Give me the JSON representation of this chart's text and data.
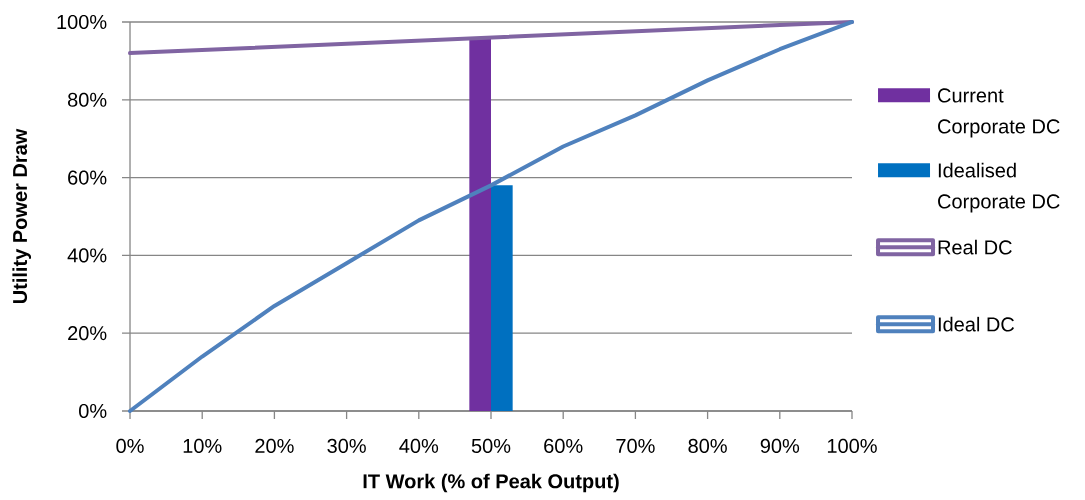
{
  "chart_data": {
    "type": "bar",
    "xlabel": "IT Work (% of Peak Output)",
    "ylabel": "Utility Power Draw",
    "x": [
      50
    ],
    "series": [
      {
        "name": "Current Corporate DC",
        "color": "#7030a0",
        "values": [
          96
        ]
      },
      {
        "name": "Idealised Corporate DC",
        "color": "#0070c0",
        "values": [
          58
        ]
      },
      {
        "name": "Real DC",
        "type": "line",
        "color": "#8064a2",
        "x": [
          0,
          100
        ],
        "values": [
          92,
          100
        ]
      },
      {
        "name": "Ideal DC",
        "type": "line",
        "color": "#4f81bd",
        "x": [
          0,
          10,
          20,
          30,
          40,
          50,
          60,
          70,
          80,
          90,
          100
        ],
        "values": [
          0,
          14,
          27,
          38,
          49,
          58,
          68,
          76,
          85,
          93,
          100
        ]
      }
    ],
    "xlim": [
      0,
      100
    ],
    "ylim": [
      0,
      100
    ],
    "xticks": [
      {
        "value": 0,
        "label": "0%"
      },
      {
        "value": 10,
        "label": "10%"
      },
      {
        "value": 20,
        "label": "20%"
      },
      {
        "value": 30,
        "label": "30%"
      },
      {
        "value": 40,
        "label": "40%"
      },
      {
        "value": 50,
        "label": "50%"
      },
      {
        "value": 60,
        "label": "60%"
      },
      {
        "value": 70,
        "label": "70%"
      },
      {
        "value": 80,
        "label": "80%"
      },
      {
        "value": 90,
        "label": "90%"
      },
      {
        "value": 100,
        "label": "100%"
      }
    ],
    "yticks": [
      {
        "value": 0,
        "label": "0%"
      },
      {
        "value": 20,
        "label": "20%"
      },
      {
        "value": 40,
        "label": "40%"
      },
      {
        "value": 60,
        "label": "60%"
      },
      {
        "value": 80,
        "label": "80%"
      },
      {
        "value": 100,
        "label": "100%"
      }
    ],
    "grid": "y",
    "legend": "right"
  }
}
